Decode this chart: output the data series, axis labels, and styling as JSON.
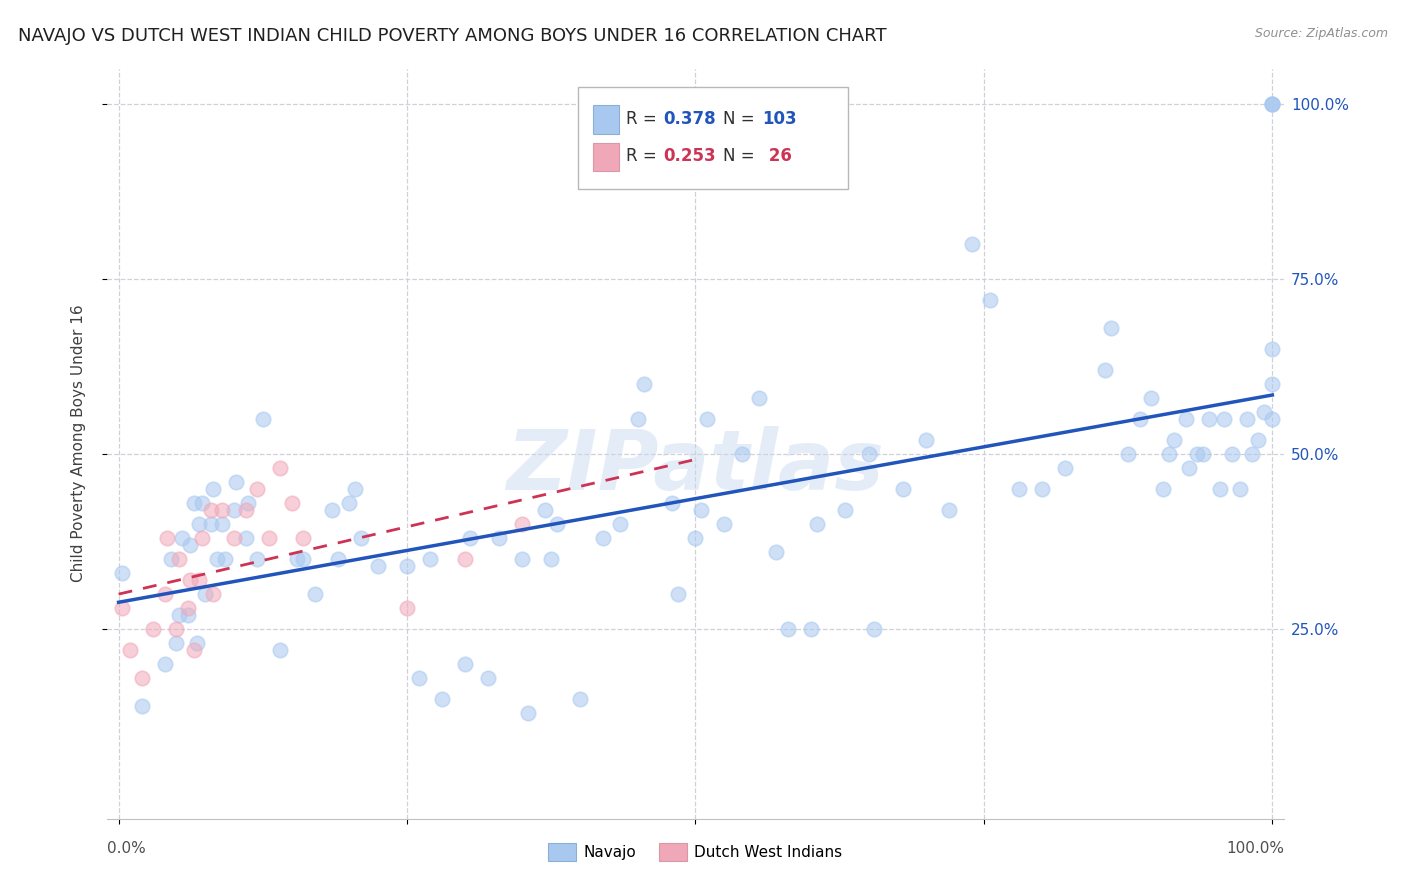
{
  "title": "NAVAJO VS DUTCH WEST INDIAN CHILD POVERTY AMONG BOYS UNDER 16 CORRELATION CHART",
  "source": "Source: ZipAtlas.com",
  "ylabel": "Child Poverty Among Boys Under 16",
  "watermark": "ZIPatlas",
  "navajo_R": 0.378,
  "navajo_N": 103,
  "dwi_R": 0.253,
  "dwi_N": 26,
  "navajo_color": "#a8c8f0",
  "dwi_color": "#f0a8b8",
  "navajo_line_color": "#2255bb",
  "dwi_line_color": "#cc3355",
  "navajo_x": [
    0.003,
    0.02,
    0.04,
    0.045,
    0.05,
    0.052,
    0.055,
    0.06,
    0.062,
    0.065,
    0.068,
    0.07,
    0.072,
    0.075,
    0.08,
    0.082,
    0.085,
    0.09,
    0.092,
    0.1,
    0.102,
    0.11,
    0.112,
    0.12,
    0.125,
    0.14,
    0.155,
    0.16,
    0.17,
    0.185,
    0.19,
    0.2,
    0.205,
    0.21,
    0.225,
    0.25,
    0.26,
    0.27,
    0.28,
    0.3,
    0.305,
    0.32,
    0.33,
    0.35,
    0.355,
    0.37,
    0.375,
    0.38,
    0.4,
    0.42,
    0.435,
    0.45,
    0.455,
    0.48,
    0.485,
    0.5,
    0.505,
    0.51,
    0.525,
    0.54,
    0.555,
    0.57,
    0.58,
    0.6,
    0.605,
    0.63,
    0.65,
    0.655,
    0.68,
    0.7,
    0.72,
    0.74,
    0.755,
    0.78,
    0.8,
    0.82,
    0.855,
    0.86,
    0.875,
    0.885,
    0.895,
    0.905,
    0.91,
    0.915,
    0.925,
    0.928,
    0.935,
    0.94,
    0.945,
    0.955,
    0.958,
    0.965,
    0.972,
    0.978,
    0.982,
    0.988,
    0.993,
    1.0,
    1.0,
    1.0,
    1.0,
    1.0,
    1.0
  ],
  "navajo_y": [
    0.33,
    0.14,
    0.2,
    0.35,
    0.23,
    0.27,
    0.38,
    0.27,
    0.37,
    0.43,
    0.23,
    0.4,
    0.43,
    0.3,
    0.4,
    0.45,
    0.35,
    0.4,
    0.35,
    0.42,
    0.46,
    0.38,
    0.43,
    0.35,
    0.55,
    0.22,
    0.35,
    0.35,
    0.3,
    0.42,
    0.35,
    0.43,
    0.45,
    0.38,
    0.34,
    0.34,
    0.18,
    0.35,
    0.15,
    0.2,
    0.38,
    0.18,
    0.38,
    0.35,
    0.13,
    0.42,
    0.35,
    0.4,
    0.15,
    0.38,
    0.4,
    0.55,
    0.6,
    0.43,
    0.3,
    0.38,
    0.42,
    0.55,
    0.4,
    0.5,
    0.58,
    0.36,
    0.25,
    0.25,
    0.4,
    0.42,
    0.5,
    0.25,
    0.45,
    0.52,
    0.42,
    0.8,
    0.72,
    0.45,
    0.45,
    0.48,
    0.62,
    0.68,
    0.5,
    0.55,
    0.58,
    0.45,
    0.5,
    0.52,
    0.55,
    0.48,
    0.5,
    0.5,
    0.55,
    0.45,
    0.55,
    0.5,
    0.45,
    0.55,
    0.5,
    0.52,
    0.56,
    1.0,
    1.0,
    1.0,
    0.65,
    0.55,
    0.6
  ],
  "dwi_x": [
    0.003,
    0.01,
    0.02,
    0.03,
    0.04,
    0.042,
    0.05,
    0.052,
    0.06,
    0.062,
    0.065,
    0.07,
    0.072,
    0.08,
    0.082,
    0.09,
    0.1,
    0.11,
    0.12,
    0.13,
    0.14,
    0.15,
    0.16,
    0.25,
    0.3,
    0.35
  ],
  "dwi_y": [
    0.28,
    0.22,
    0.18,
    0.25,
    0.3,
    0.38,
    0.25,
    0.35,
    0.28,
    0.32,
    0.22,
    0.32,
    0.38,
    0.42,
    0.3,
    0.42,
    0.38,
    0.42,
    0.45,
    0.38,
    0.48,
    0.43,
    0.38,
    0.28,
    0.35,
    0.4
  ],
  "xlim": [
    -0.01,
    1.01
  ],
  "ylim": [
    -0.02,
    1.05
  ],
  "yticks": [
    0.25,
    0.5,
    0.75,
    1.0
  ],
  "yticklabels": [
    "25.0%",
    "50.0%",
    "75.0%",
    "100.0%"
  ],
  "grid_color": "#d0d0d8",
  "background_color": "#ffffff",
  "marker_size": 110,
  "marker_alpha": 0.55,
  "title_fontsize": 13,
  "axis_label_fontsize": 11,
  "tick_fontsize": 11,
  "navajo_legend": "Navajo",
  "dwi_legend": "Dutch West Indians"
}
